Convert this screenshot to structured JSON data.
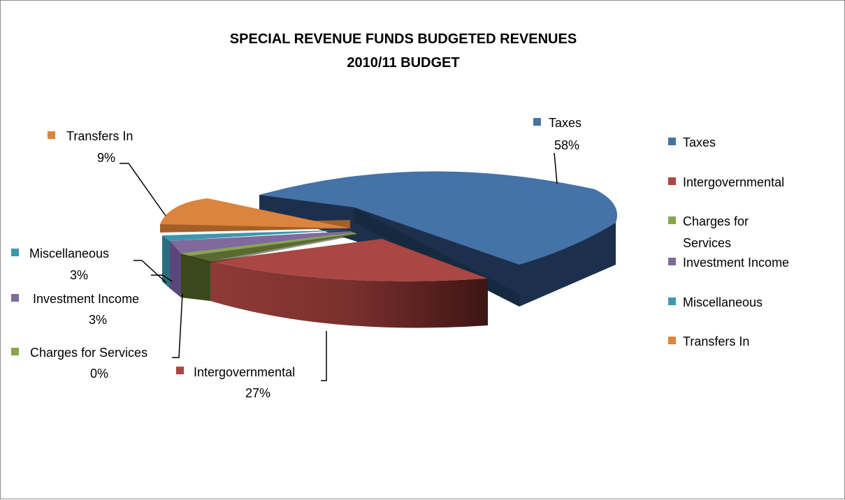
{
  "chart_data": {
    "type": "pie",
    "title": "SPECIAL REVENUE FUNDS BUDGETED REVENUES",
    "subtitle": "2010/11 BUDGET",
    "categories": [
      "Taxes",
      "Intergovernmental",
      "Charges for Services",
      "Investment Income",
      "Miscellaneous",
      "Transfers In"
    ],
    "values": [
      58,
      27,
      0,
      3,
      3,
      9
    ],
    "value_labels": [
      "58%",
      "27%",
      "0%",
      "3%",
      "3%",
      "9%"
    ],
    "three_d": true,
    "exploded": true,
    "legend": {
      "placement": "right",
      "entries": [
        "Taxes",
        "Intergovernmental",
        "Charges for Services",
        "Investment Income",
        "Miscellaneous",
        "Transfers In"
      ]
    },
    "colors": [
      "#4572a7",
      "#aa4643",
      "#89a54e",
      "#80699b",
      "#3d96ae",
      "#db843d"
    ]
  }
}
